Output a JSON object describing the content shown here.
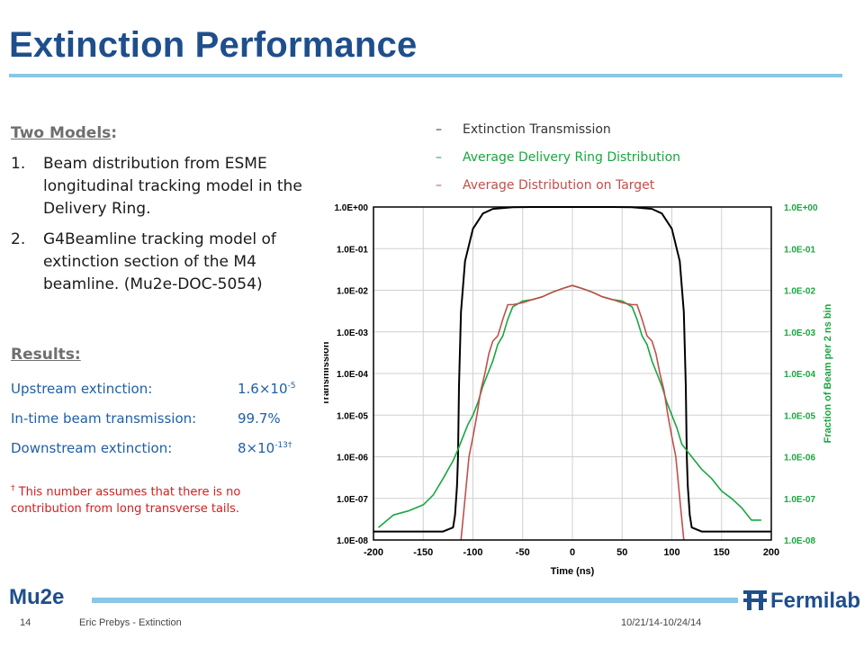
{
  "slide": {
    "title": "Extinction Performance",
    "models_heading": "Two Models",
    "models_colon": ":",
    "models": [
      {
        "num": "1.",
        "text": "Beam distribution from ESME longitudinal tracking model in the Delivery Ring."
      },
      {
        "num": "2.",
        "text": "G4Beamline tracking model of extinction section of the M4 beamline. (Mu2e-DOC-5054)"
      }
    ],
    "results_heading": "Results:",
    "results": [
      {
        "label": "Upstream extinction:",
        "value_base": "1.6×10",
        "value_exp": "-5"
      },
      {
        "label": "In-time beam transmission:",
        "value_base": "99.7%",
        "value_exp": ""
      },
      {
        "label": "Downstream extinction:",
        "value_base": "8×10",
        "value_exp": "-13†"
      }
    ],
    "footnote_mark": "†",
    "footnote_text": " This number assumes that there is no contribution from long transverse tails.",
    "footer": {
      "logo_left": "Mu2e",
      "logo_right": "Fermilab",
      "page": "14",
      "author": "Eric Prebys - Extinction",
      "date": "10/21/14-10/24/14"
    },
    "legend_dash": "–",
    "colors": {
      "title": "#1f4e8c",
      "rule": "#8cc6e6",
      "results_text": "#1f5fa8",
      "footnote": "#d02020",
      "transmission": "#000000",
      "ring": "#1aa640",
      "target": "#c0504d"
    }
  },
  "chart_data": {
    "type": "line",
    "title": "",
    "xlabel": "Time (ns)",
    "ylabel": "Transmission",
    "y2label": "Fraction of Beam per 2 ns bin",
    "xlim": [
      -200,
      200
    ],
    "ylim": [
      1e-08,
      1
    ],
    "yscale": "log",
    "x_ticks": [
      "-200",
      "-150",
      "-100",
      "-50",
      "0",
      "50",
      "100",
      "150",
      "200"
    ],
    "y_ticks": [
      "1.0E+00",
      "1.0E-01",
      "1.0E-02",
      "1.0E-03",
      "1.0E-04",
      "1.0E-05",
      "1.0E-06",
      "1.0E-07",
      "1.0E-08"
    ],
    "y2_ticks": [
      "1.0E+00",
      "1.0E-01",
      "1.0E-02",
      "1.0E-03",
      "1.0E-04",
      "1.0E-05",
      "1.0E-06",
      "1.0E-07",
      "1.0E-08"
    ],
    "grid": true,
    "legend_position": "top",
    "series": [
      {
        "name": "Extinction Transmission",
        "color": "#000000",
        "axis": "left",
        "x": [
          -200,
          -130,
          -120,
          -118,
          -116,
          -115,
          -114,
          -112,
          -108,
          -100,
          -90,
          -80,
          -60,
          -40,
          40,
          60,
          80,
          90,
          100,
          108,
          112,
          114,
          115,
          116,
          118,
          120,
          130,
          200
        ],
        "y": [
          1.6e-08,
          1.6e-08,
          2e-08,
          4e-08,
          2e-07,
          1e-06,
          5e-05,
          0.003,
          0.05,
          0.3,
          0.7,
          0.9,
          0.99,
          1.0,
          1.0,
          0.99,
          0.9,
          0.7,
          0.3,
          0.05,
          0.003,
          5e-05,
          1e-06,
          2e-07,
          4e-08,
          2e-08,
          1.6e-08,
          1.6e-08
        ]
      },
      {
        "name": "Average Delivery Ring Distribution",
        "color": "#1aa640",
        "axis": "right",
        "x": [
          -195,
          -180,
          -165,
          -150,
          -140,
          -130,
          -120,
          -115,
          -110,
          -105,
          -100,
          -95,
          -90,
          -85,
          -80,
          -75,
          -70,
          -65,
          -60,
          -50,
          -40,
          -30,
          -20,
          -10,
          0,
          10,
          20,
          30,
          40,
          50,
          60,
          65,
          70,
          75,
          80,
          85,
          90,
          95,
          100,
          105,
          110,
          120,
          130,
          140,
          150,
          160,
          170,
          180,
          190
        ],
        "y": [
          2e-08,
          4e-08,
          5e-08,
          7e-08,
          1.2e-07,
          3e-07,
          8e-07,
          1.5e-06,
          3e-06,
          6e-06,
          1e-05,
          2e-05,
          5e-05,
          0.0001,
          0.0002,
          0.0005,
          0.0008,
          0.002,
          0.004,
          0.0055,
          0.006,
          0.007,
          0.009,
          0.011,
          0.013,
          0.011,
          0.009,
          0.007,
          0.006,
          0.0055,
          0.004,
          0.002,
          0.0008,
          0.0005,
          0.0002,
          0.0001,
          5e-05,
          2e-05,
          1e-05,
          5e-06,
          2e-06,
          1e-06,
          5e-07,
          3e-07,
          1.5e-07,
          1e-07,
          6e-08,
          3e-08,
          3e-08
        ]
      },
      {
        "name": "Average Distribution on Target",
        "color": "#c0504d",
        "axis": "right",
        "x": [
          -112,
          -108,
          -104,
          -100,
          -96,
          -92,
          -88,
          -84,
          -80,
          -75,
          -70,
          -65,
          -60,
          -50,
          -40,
          -30,
          -20,
          -10,
          0,
          10,
          20,
          30,
          40,
          50,
          60,
          65,
          70,
          75,
          80,
          84,
          88,
          92,
          96,
          100,
          104,
          108,
          112
        ],
        "y": [
          1e-08,
          1e-07,
          1e-06,
          3e-06,
          1e-05,
          4e-05,
          0.0001,
          0.0003,
          0.0006,
          0.0008,
          0.002,
          0.0045,
          0.0045,
          0.005,
          0.006,
          0.007,
          0.009,
          0.011,
          0.013,
          0.011,
          0.009,
          0.007,
          0.006,
          0.005,
          0.0045,
          0.0045,
          0.002,
          0.0008,
          0.0006,
          0.0003,
          0.0001,
          4e-05,
          1e-05,
          3e-06,
          1e-06,
          1e-07,
          1e-08
        ]
      }
    ]
  }
}
